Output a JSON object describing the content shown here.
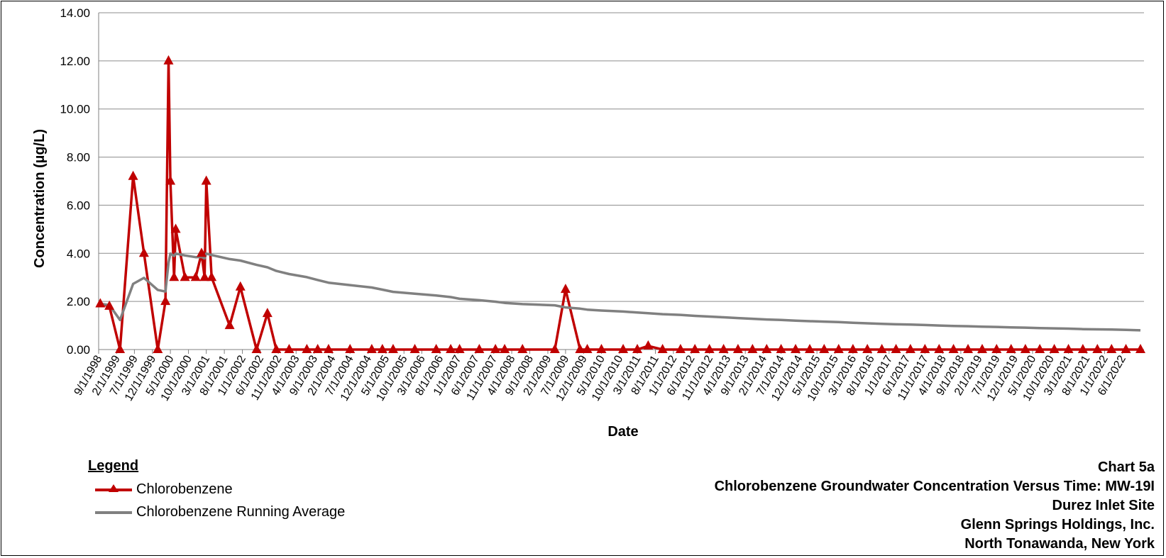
{
  "chart_data": {
    "type": "line",
    "xlabel": "Date",
    "ylabel": "Concentration (µg/L)",
    "ylim": [
      0,
      14
    ],
    "yticks": [
      "0.00",
      "2.00",
      "4.00",
      "6.00",
      "8.00",
      "10.00",
      "12.00",
      "14.00"
    ],
    "xlim": [
      "1998-09-01",
      "2022-12-01"
    ],
    "xticks": [
      "9/1/1998",
      "2/1/1999",
      "7/1/1999",
      "12/1/1999",
      "5/1/2000",
      "10/1/2000",
      "3/1/2001",
      "8/1/2001",
      "1/1/2002",
      "6/1/2002",
      "11/1/2002",
      "4/1/2003",
      "9/1/2003",
      "2/1/2004",
      "7/1/2004",
      "12/1/2004",
      "5/1/2005",
      "10/1/2005",
      "3/1/2006",
      "8/1/2006",
      "1/1/2007",
      "6/1/2007",
      "11/1/2007",
      "4/1/2008",
      "9/1/2008",
      "2/1/2009",
      "7/1/2009",
      "12/1/2009",
      "5/1/2010",
      "10/1/2010",
      "3/1/2011",
      "8/1/2011",
      "1/1/2012",
      "6/1/2012",
      "11/1/2012",
      "4/1/2013",
      "9/1/2013",
      "2/1/2014",
      "7/1/2014",
      "12/1/2014",
      "5/1/2015",
      "10/1/2015",
      "3/1/2016",
      "8/1/2016",
      "1/1/2017",
      "6/1/2017",
      "11/1/2017",
      "4/1/2018",
      "9/1/2018",
      "2/1/2019",
      "7/1/2019",
      "12/1/2019",
      "5/1/2020",
      "10/1/2020",
      "3/1/2021",
      "8/1/2021",
      "1/1/2022",
      "6/1/2022"
    ],
    "grid": true,
    "legend_position": "bottom-left",
    "series": [
      {
        "name": "Chlorobenzene",
        "color": "#C00000",
        "marker": "triangle",
        "points": [
          [
            "1998-09-15",
            1.9
          ],
          [
            "1998-12-01",
            1.8
          ],
          [
            "1999-03-01",
            0
          ],
          [
            "1999-06-20",
            7.2
          ],
          [
            "1999-09-20",
            4
          ],
          [
            "2000-01-15",
            0
          ],
          [
            "2000-03-20",
            2
          ],
          [
            "2000-04-15",
            12
          ],
          [
            "2000-05-01",
            7
          ],
          [
            "2000-06-01",
            3
          ],
          [
            "2000-06-15",
            5
          ],
          [
            "2000-09-01",
            3
          ],
          [
            "2000-12-01",
            3
          ],
          [
            "2001-01-20",
            4
          ],
          [
            "2001-02-15",
            3
          ],
          [
            "2001-03-01",
            7
          ],
          [
            "2001-04-15",
            3
          ],
          [
            "2001-09-15",
            1
          ],
          [
            "2001-12-15",
            2.6
          ],
          [
            "2002-05-01",
            0
          ],
          [
            "2002-08-01",
            1.5
          ],
          [
            "2002-10-15",
            0
          ],
          [
            "2003-02-01",
            0
          ],
          [
            "2003-07-01",
            0
          ],
          [
            "2003-10-01",
            0
          ],
          [
            "2004-01-01",
            0
          ],
          [
            "2004-07-01",
            0
          ],
          [
            "2005-01-01",
            0
          ],
          [
            "2005-04-01",
            0
          ],
          [
            "2005-07-01",
            0
          ],
          [
            "2006-01-01",
            0
          ],
          [
            "2006-07-01",
            0
          ],
          [
            "2006-11-01",
            0
          ],
          [
            "2007-01-15",
            0
          ],
          [
            "2007-07-01",
            0
          ],
          [
            "2007-11-15",
            0
          ],
          [
            "2008-02-01",
            0
          ],
          [
            "2008-07-01",
            0
          ],
          [
            "2009-04-01",
            0
          ],
          [
            "2009-07-01",
            2.5
          ],
          [
            "2009-11-01",
            0
          ],
          [
            "2010-01-01",
            0
          ],
          [
            "2010-05-01",
            0
          ],
          [
            "2010-11-01",
            0
          ],
          [
            "2011-03-01",
            0
          ],
          [
            "2011-06-01",
            0.15
          ],
          [
            "2011-10-01",
            0
          ],
          [
            "2012-03-01",
            0
          ],
          [
            "2012-07-01",
            0
          ],
          [
            "2012-11-01",
            0
          ],
          [
            "2013-03-01",
            0
          ],
          [
            "2013-07-01",
            0
          ],
          [
            "2013-11-01",
            0
          ],
          [
            "2014-03-01",
            0
          ],
          [
            "2014-07-01",
            0
          ],
          [
            "2014-11-01",
            0
          ],
          [
            "2015-03-01",
            0
          ],
          [
            "2015-07-01",
            0
          ],
          [
            "2015-11-01",
            0
          ],
          [
            "2016-03-01",
            0
          ],
          [
            "2016-07-01",
            0
          ],
          [
            "2016-11-01",
            0
          ],
          [
            "2017-03-01",
            0
          ],
          [
            "2017-07-01",
            0
          ],
          [
            "2017-11-01",
            0
          ],
          [
            "2018-03-01",
            0
          ],
          [
            "2018-07-01",
            0
          ],
          [
            "2018-11-01",
            0
          ],
          [
            "2019-03-01",
            0
          ],
          [
            "2019-07-01",
            0
          ],
          [
            "2019-11-01",
            0
          ],
          [
            "2020-03-01",
            0
          ],
          [
            "2020-07-01",
            0
          ],
          [
            "2020-11-01",
            0
          ],
          [
            "2021-03-01",
            0
          ],
          [
            "2021-07-01",
            0
          ],
          [
            "2021-11-01",
            0
          ],
          [
            "2022-03-01",
            0
          ],
          [
            "2022-07-01",
            0
          ],
          [
            "2022-11-01",
            0
          ]
        ]
      },
      {
        "name": "Chlorobenzene Running Average",
        "color": "#808080",
        "marker": "none",
        "points": [
          [
            "1998-09-15",
            1.9
          ],
          [
            "1998-12-01",
            1.85
          ],
          [
            "1999-03-01",
            1.23
          ],
          [
            "1999-06-20",
            2.73
          ],
          [
            "1999-09-20",
            2.98
          ],
          [
            "2000-01-15",
            2.48
          ],
          [
            "2000-03-20",
            2.41
          ],
          [
            "2000-04-15",
            3.61
          ],
          [
            "2000-05-01",
            3.99
          ],
          [
            "2000-06-01",
            3.89
          ],
          [
            "2000-06-15",
            3.99
          ],
          [
            "2000-09-01",
            3.91
          ],
          [
            "2000-12-01",
            3.84
          ],
          [
            "2001-01-20",
            3.85
          ],
          [
            "2001-02-15",
            3.79
          ],
          [
            "2001-03-01",
            3.99
          ],
          [
            "2001-04-15",
            3.93
          ],
          [
            "2001-09-15",
            3.76
          ],
          [
            "2001-12-15",
            3.7
          ],
          [
            "2002-05-01",
            3.52
          ],
          [
            "2002-08-01",
            3.42
          ],
          [
            "2002-10-15",
            3.27
          ],
          [
            "2003-02-01",
            3.14
          ],
          [
            "2003-07-01",
            3.01
          ],
          [
            "2003-10-01",
            2.89
          ],
          [
            "2004-01-01",
            2.78
          ],
          [
            "2004-07-01",
            2.68
          ],
          [
            "2005-01-01",
            2.58
          ],
          [
            "2005-04-01",
            2.49
          ],
          [
            "2005-07-01",
            2.4
          ],
          [
            "2006-01-01",
            2.32
          ],
          [
            "2006-07-01",
            2.25
          ],
          [
            "2006-11-01",
            2.18
          ],
          [
            "2007-01-15",
            2.11
          ],
          [
            "2007-07-01",
            2.05
          ],
          [
            "2007-11-15",
            1.99
          ],
          [
            "2008-02-01",
            1.94
          ],
          [
            "2008-07-01",
            1.89
          ],
          [
            "2009-04-01",
            1.84
          ],
          [
            "2009-07-01",
            1.75
          ],
          [
            "2009-11-01",
            1.7
          ],
          [
            "2010-01-01",
            1.66
          ],
          [
            "2010-05-01",
            1.62
          ],
          [
            "2010-11-01",
            1.58
          ],
          [
            "2011-03-01",
            1.54
          ],
          [
            "2011-06-01",
            1.51
          ],
          [
            "2011-10-01",
            1.47
          ],
          [
            "2012-03-01",
            1.44
          ],
          [
            "2012-07-01",
            1.4
          ],
          [
            "2012-11-01",
            1.37
          ],
          [
            "2013-03-01",
            1.34
          ],
          [
            "2013-07-01",
            1.31
          ],
          [
            "2013-11-01",
            1.28
          ],
          [
            "2014-03-01",
            1.25
          ],
          [
            "2014-07-01",
            1.23
          ],
          [
            "2014-11-01",
            1.2
          ],
          [
            "2015-03-01",
            1.18
          ],
          [
            "2015-07-01",
            1.16
          ],
          [
            "2015-11-01",
            1.14
          ],
          [
            "2016-03-01",
            1.11
          ],
          [
            "2016-07-01",
            1.09
          ],
          [
            "2016-11-01",
            1.07
          ],
          [
            "2017-03-01",
            1.05
          ],
          [
            "2017-07-01",
            1.04
          ],
          [
            "2017-11-01",
            1.02
          ],
          [
            "2018-03-01",
            1.0
          ],
          [
            "2018-07-01",
            0.98
          ],
          [
            "2018-11-01",
            0.97
          ],
          [
            "2019-03-01",
            0.95
          ],
          [
            "2019-07-01",
            0.94
          ],
          [
            "2019-11-01",
            0.92
          ],
          [
            "2020-03-01",
            0.91
          ],
          [
            "2020-07-01",
            0.89
          ],
          [
            "2020-11-01",
            0.88
          ],
          [
            "2021-03-01",
            0.87
          ],
          [
            "2021-07-01",
            0.85
          ],
          [
            "2021-11-01",
            0.84
          ],
          [
            "2022-03-01",
            0.83
          ],
          [
            "2022-07-01",
            0.82
          ],
          [
            "2022-11-01",
            0.8
          ]
        ]
      }
    ]
  },
  "legend": {
    "title": "Legend",
    "items": [
      "Chlorobenzene",
      "Chlorobenzene Running Average"
    ]
  },
  "info": {
    "chart_number": "Chart 5a",
    "chart_title": "Chlorobenzene Groundwater Concentration Versus Time: MW-19I",
    "site": "Durez Inlet Site",
    "company": "Glenn Springs Holdings, Inc.",
    "location": "North Tonawanda, New York"
  }
}
